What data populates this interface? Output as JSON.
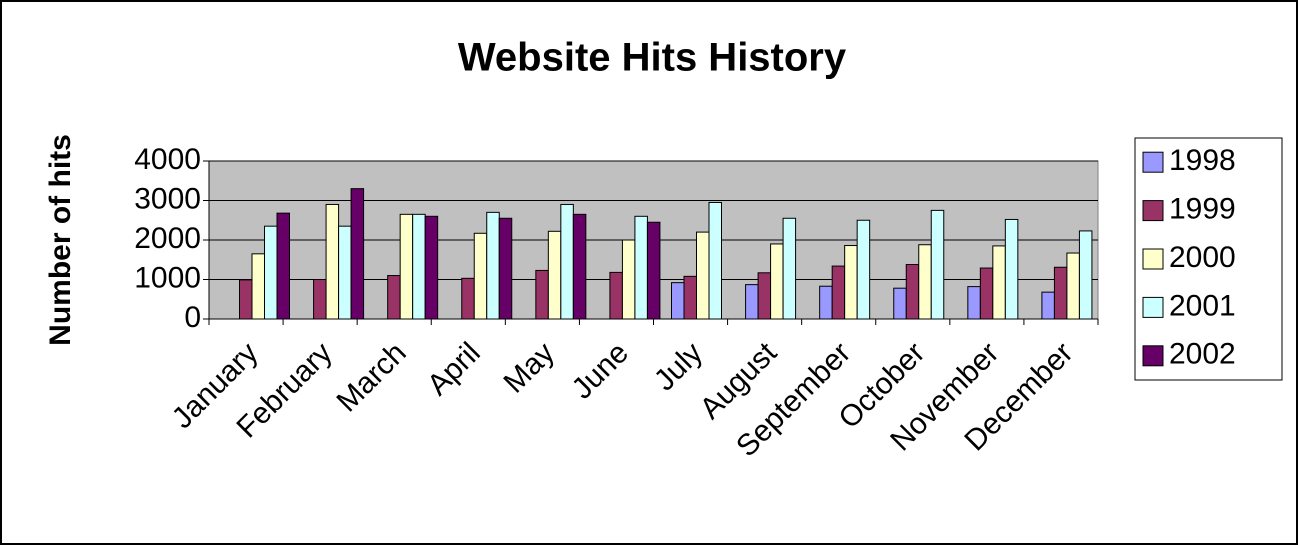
{
  "chart_data": {
    "type": "bar",
    "title": "Website Hits History",
    "y_label": "Number of hits",
    "categories": [
      "January",
      "February",
      "March",
      "April",
      "May",
      "June",
      "July",
      "August",
      "September",
      "October",
      "November",
      "December"
    ],
    "series": [
      {
        "name": "1998",
        "color": "#9999FF",
        "values": [
          null,
          null,
          null,
          null,
          null,
          null,
          920,
          870,
          830,
          780,
          820,
          680
        ]
      },
      {
        "name": "1999",
        "color": "#993366",
        "values": [
          990,
          1000,
          1100,
          1030,
          1230,
          1180,
          1080,
          1170,
          1340,
          1380,
          1290,
          1310
        ]
      },
      {
        "name": "2000",
        "color": "#FFFFCC",
        "values": [
          1650,
          2900,
          2650,
          2170,
          2220,
          2000,
          2200,
          1900,
          1860,
          1880,
          1850,
          1670
        ]
      },
      {
        "name": "2001",
        "color": "#CCFFFF",
        "values": [
          2350,
          2350,
          2650,
          2700,
          2900,
          2600,
          2950,
          2550,
          2500,
          2750,
          2520,
          2230
        ]
      },
      {
        "name": "2002",
        "color": "#660066",
        "values": [
          2680,
          3300,
          2600,
          2550,
          2650,
          2450,
          null,
          null,
          null,
          null,
          null,
          null
        ]
      }
    ],
    "ylim": [
      0,
      4000
    ],
    "yticks": [
      0,
      1000,
      2000,
      3000,
      4000
    ],
    "grid": true,
    "plot_background": "#C0C0C0",
    "legend": "right"
  }
}
